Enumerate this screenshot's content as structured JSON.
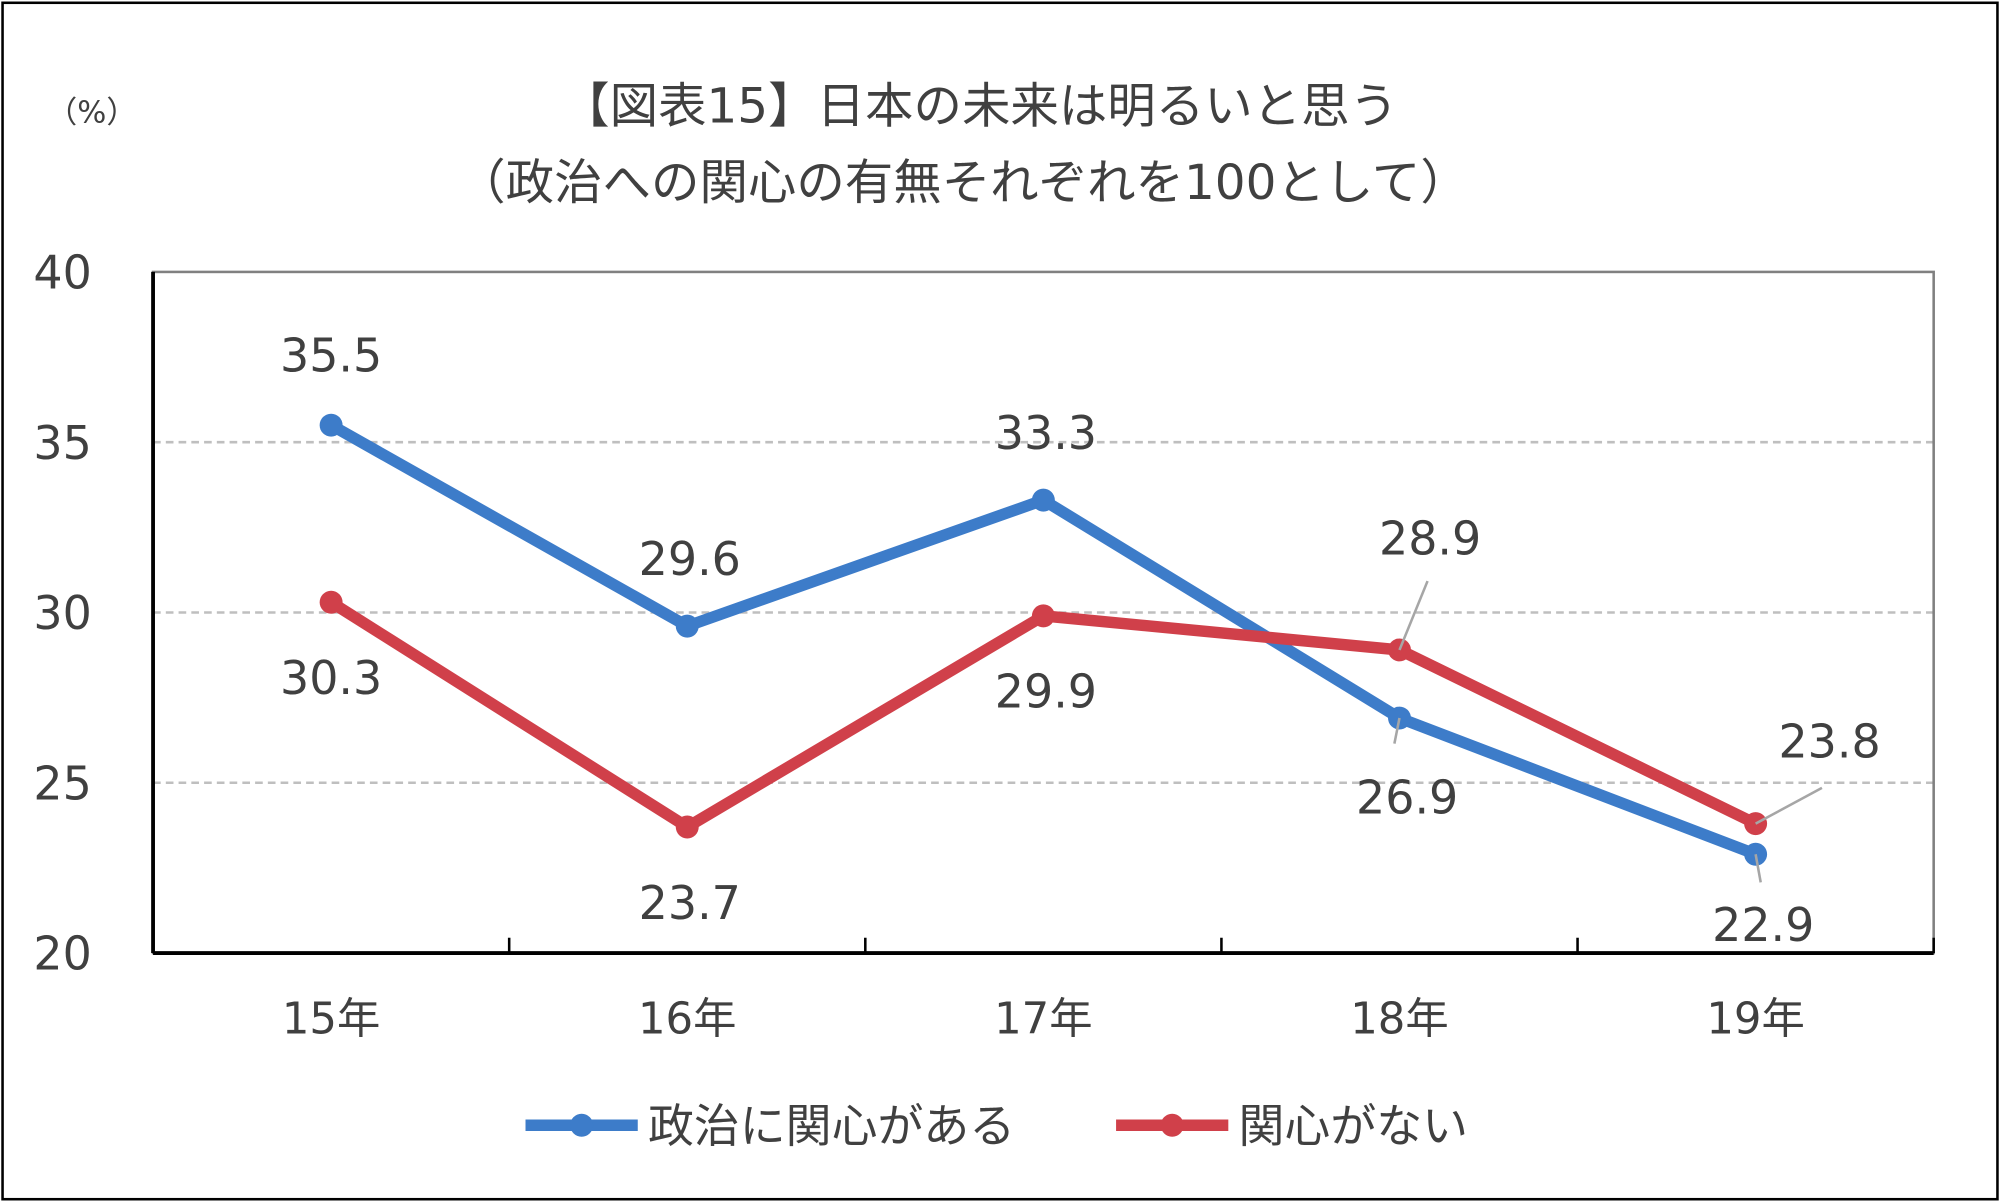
{
  "chart_data": {
    "type": "line",
    "title": "【図表15】日本の未来は明るいと思う",
    "subtitle": "（政治への関心の有無それぞれを100として）",
    "ylabel": "（%）",
    "xlabel": "",
    "categories": [
      "15年",
      "16年",
      "17年",
      "18年",
      "19年"
    ],
    "ylim": [
      20,
      40
    ],
    "yticks": [
      "20",
      "25",
      "30",
      "35",
      "40"
    ],
    "grid": true,
    "legend_position": "bottom",
    "series": [
      {
        "name": "政治に関心がある",
        "color": "#3D7CC9",
        "values": [
          35.5,
          29.6,
          33.3,
          26.9,
          22.9
        ],
        "labels": [
          "35.5",
          "29.6",
          "33.3",
          "26.9",
          "22.9"
        ]
      },
      {
        "name": "関心がない",
        "color": "#D0404A",
        "values": [
          30.3,
          23.7,
          29.9,
          28.9,
          23.8
        ],
        "labels": [
          "30.3",
          "23.7",
          "29.9",
          "28.9",
          "23.8"
        ]
      }
    ]
  }
}
